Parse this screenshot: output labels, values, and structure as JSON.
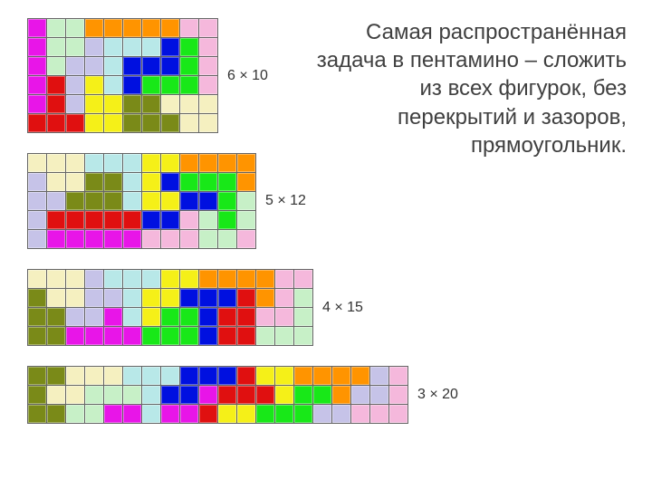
{
  "description": "Самая распространённая задача в пентамино – сложить из всех фигурок, без перекрытий и зазоров, прямоугольник.",
  "palette": {
    "MG": "#e815e8",
    "MI": "#c7f0c7",
    "OR": "#ff9400",
    "PK": "#f5b8dc",
    "LV": "#c6c3e8",
    "CY": "#b8e8e8",
    "BL": "#0010e0",
    "LG": "#18e818",
    "RD": "#e01010",
    "YL": "#f5f018",
    "OL": "#7a8a18",
    "CR": "#f5f0c0"
  },
  "grids": [
    {
      "label": "6 × 10",
      "cols": 10,
      "rows": 6,
      "cells": [
        [
          "MG",
          "MI",
          "MI",
          "OR",
          "OR",
          "OR",
          "OR",
          "OR",
          "PK",
          "PK"
        ],
        [
          "MG",
          "MI",
          "MI",
          "LV",
          "CY",
          "CY",
          "CY",
          "BL",
          "LG",
          "PK"
        ],
        [
          "MG",
          "MI",
          "LV",
          "LV",
          "CY",
          "BL",
          "BL",
          "BL",
          "LG",
          "PK"
        ],
        [
          "MG",
          "RD",
          "LV",
          "YL",
          "CY",
          "BL",
          "LG",
          "LG",
          "LG",
          "PK"
        ],
        [
          "MG",
          "RD",
          "LV",
          "YL",
          "YL",
          "OL",
          "OL",
          "CR",
          "CR",
          "CR"
        ],
        [
          "RD",
          "RD",
          "RD",
          "YL",
          "YL",
          "OL",
          "OL",
          "OL",
          "CR",
          "CR"
        ]
      ]
    },
    {
      "label": "5 × 12",
      "cols": 12,
      "rows": 5,
      "cells": [
        [
          "CR",
          "CR",
          "CR",
          "CY",
          "CY",
          "CY",
          "YL",
          "YL",
          "OR",
          "OR",
          "OR",
          "OR"
        ],
        [
          "LV",
          "CR",
          "CR",
          "OL",
          "OL",
          "CY",
          "YL",
          "BL",
          "LG",
          "LG",
          "LG",
          "OR"
        ],
        [
          "LV",
          "LV",
          "OL",
          "OL",
          "OL",
          "CY",
          "YL",
          "YL",
          "BL",
          "BL",
          "LG",
          "MI"
        ],
        [
          "LV",
          "RD",
          "RD",
          "RD",
          "RD",
          "RD",
          "BL",
          "BL",
          "PK",
          "MI",
          "LG",
          "MI"
        ],
        [
          "LV",
          "MG",
          "MG",
          "MG",
          "MG",
          "MG",
          "PK",
          "PK",
          "PK",
          "MI",
          "MI",
          "PK"
        ]
      ]
    },
    {
      "label": "4 × 15",
      "cols": 15,
      "rows": 4,
      "cells": [
        [
          "CR",
          "CR",
          "CR",
          "LV",
          "CY",
          "CY",
          "CY",
          "YL",
          "YL",
          "OR",
          "OR",
          "OR",
          "OR",
          "PK",
          "PK"
        ],
        [
          "OL",
          "CR",
          "CR",
          "LV",
          "LV",
          "CY",
          "YL",
          "YL",
          "BL",
          "BL",
          "BL",
          "RD",
          "OR",
          "PK",
          "MI"
        ],
        [
          "OL",
          "OL",
          "LV",
          "LV",
          "MG",
          "CY",
          "YL",
          "LG",
          "LG",
          "BL",
          "RD",
          "RD",
          "PK",
          "PK",
          "MI"
        ],
        [
          "OL",
          "OL",
          "MG",
          "MG",
          "MG",
          "MG",
          "LG",
          "LG",
          "LG",
          "BL",
          "RD",
          "RD",
          "MI",
          "MI",
          "MI"
        ]
      ]
    },
    {
      "label": "3 × 20",
      "cols": 20,
      "rows": 3,
      "cells": [
        [
          "OL",
          "OL",
          "CR",
          "CR",
          "CR",
          "CY",
          "CY",
          "CY",
          "BL",
          "BL",
          "BL",
          "RD",
          "YL",
          "YL",
          "OR",
          "OR",
          "OR",
          "OR",
          "LV",
          "PK"
        ],
        [
          "OL",
          "CR",
          "CR",
          "MI",
          "MI",
          "MI",
          "CY",
          "BL",
          "BL",
          "MG",
          "RD",
          "RD",
          "RD",
          "YL",
          "LG",
          "LG",
          "OR",
          "LV",
          "LV",
          "PK"
        ],
        [
          "OL",
          "OL",
          "MI",
          "MI",
          "MG",
          "MG",
          "CY",
          "MG",
          "MG",
          "RD",
          "YL",
          "YL",
          "LG",
          "LG",
          "LG",
          "LV",
          "LV",
          "PK",
          "PK",
          "PK"
        ]
      ]
    }
  ],
  "cell_size": 20,
  "label_fontsize": 16,
  "desc_fontsize": 24,
  "background_color": "#ffffff",
  "text_color": "#404040"
}
